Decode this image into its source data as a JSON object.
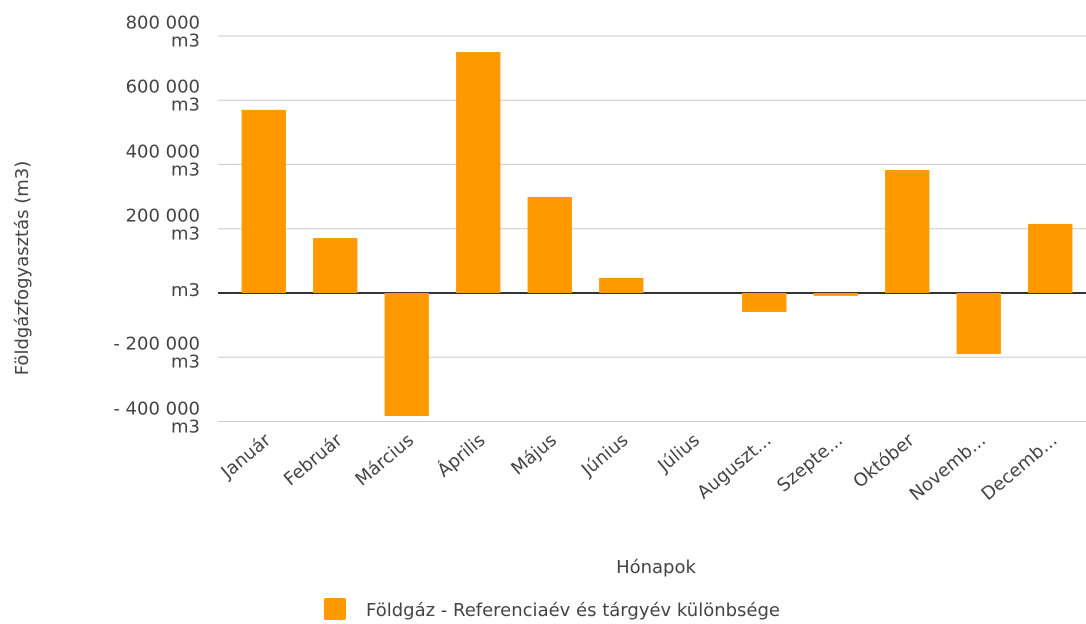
{
  "chart_data": {
    "type": "bar",
    "x_label": "Hónapok",
    "y_label": "Földgázfogyasztás (m3)",
    "categories": [
      "Január",
      "Február",
      "Március",
      "Április",
      "Május",
      "Június",
      "Július",
      "Auguszt...",
      "Szepte...",
      "Október",
      "Novemb...",
      "Decemb..."
    ],
    "series": [
      {
        "name": "Földgáz - Referenciaév és tárgyév különbsége",
        "color": "#ff9900",
        "values": [
          570000,
          171000,
          -383000,
          750000,
          299000,
          47000,
          0,
          -59000,
          -9000,
          383000,
          -190000,
          215000
        ]
      }
    ],
    "ylim": [
      -400000,
      800000
    ],
    "yticks": [
      {
        "value": -400000,
        "label": "- 400 000 m3"
      },
      {
        "value": -200000,
        "label": "- 200 000 m3"
      },
      {
        "value": 0,
        "label": "m3"
      },
      {
        "value": 200000,
        "label": "200 000 m3"
      },
      {
        "value": 400000,
        "label": "400 000 m3"
      },
      {
        "value": 600000,
        "label": "600 000 m3"
      },
      {
        "value": 800000,
        "label": "800 000 m3"
      }
    ],
    "grid": true,
    "legend": "bottom"
  }
}
